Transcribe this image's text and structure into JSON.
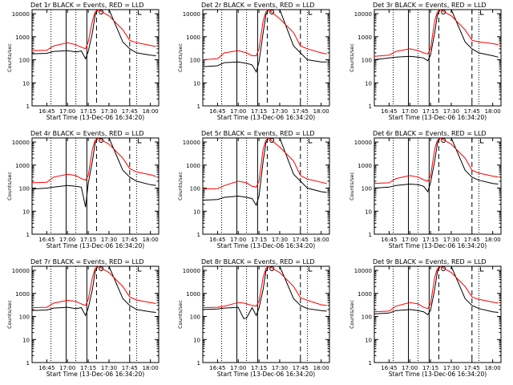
{
  "xlabel": "Start Time (13-Dec-06 16:34:20)",
  "ylabel": "Counts/sec",
  "colors": {
    "events": "#000000",
    "lld": "#ff0000",
    "axes": "#000000"
  },
  "chart_data": [
    {
      "type": "line",
      "title": "Det 1r BLACK = Events, RED = LLD",
      "xlabel": "Start Time (13-Dec-06 16:34:20)",
      "ylabel": "Counts/sec",
      "x_ticks": [
        "16:45",
        "17:00",
        "17:15",
        "17:30",
        "17:45",
        "18:00"
      ],
      "y_ticks": [
        "1",
        "10",
        "100",
        "1000",
        "10000"
      ],
      "yscale": "log",
      "series": [
        {
          "x": [
            "16:34",
            "16:45",
            "16:50",
            "17:00",
            "17:06",
            "17:10",
            "17:13",
            "17:15",
            "17:18",
            "17:20",
            "17:22",
            "17:30",
            "17:40",
            "17:45",
            "17:50",
            "18:00",
            "18:04"
          ],
          "values": [
            180,
            190,
            230,
            250,
            220,
            240,
            110,
            230,
            1500,
            9000,
            15000,
            15000,
            600,
            300,
            200,
            160,
            150
          ]
        },
        {
          "x": [
            "16:34",
            "16:45",
            "16:50",
            "17:00",
            "17:06",
            "17:10",
            "17:13",
            "17:15",
            "17:18",
            "17:20",
            "17:22",
            "17:30",
            "17:40",
            "17:45",
            "17:50",
            "18:00",
            "18:04"
          ],
          "values": [
            250,
            260,
            400,
            550,
            450,
            350,
            300,
            600,
            5000,
            12000,
            15000,
            8000,
            2000,
            700,
            550,
            420,
            380
          ]
        }
      ]
    },
    {
      "type": "line",
      "title": "Det 2r BLACK = Events, RED = LLD",
      "xlabel": "Start Time (13-Dec-06 16:34:20)",
      "ylabel": "Counts/sec",
      "x_ticks": [
        "16:45",
        "17:00",
        "17:15",
        "17:30",
        "17:45",
        "18:00"
      ],
      "y_ticks": [
        "1",
        "10",
        "100",
        "1000",
        "10000"
      ],
      "yscale": "log",
      "series": [
        {
          "x": [
            "16:34",
            "16:45",
            "16:50",
            "17:00",
            "17:06",
            "17:10",
            "17:13",
            "17:15",
            "17:18",
            "17:20",
            "17:22",
            "17:30",
            "17:40",
            "17:45",
            "17:50",
            "18:00",
            "18:04"
          ],
          "values": [
            50,
            55,
            75,
            80,
            70,
            60,
            30,
            80,
            1500,
            9000,
            15000,
            15000,
            400,
            200,
            100,
            80,
            80
          ]
        },
        {
          "x": [
            "16:34",
            "16:45",
            "16:50",
            "17:00",
            "17:06",
            "17:10",
            "17:13",
            "17:15",
            "17:18",
            "17:20",
            "17:22",
            "17:30",
            "17:40",
            "17:45",
            "17:50",
            "18:00",
            "18:04"
          ],
          "values": [
            100,
            110,
            200,
            250,
            200,
            150,
            150,
            300,
            5000,
            12000,
            15000,
            6000,
            1500,
            400,
            300,
            200,
            180
          ]
        }
      ]
    },
    {
      "type": "line",
      "title": "Det 3r BLACK = Events, RED = LLD",
      "xlabel": "Start Time (13-Dec-06 16:34:20)",
      "ylabel": "Counts/sec",
      "x_ticks": [
        "16:45",
        "17:00",
        "17:15",
        "17:30",
        "17:45",
        "18:00"
      ],
      "y_ticks": [
        "1",
        "10",
        "100",
        "1000",
        "10000"
      ],
      "yscale": "log",
      "series": [
        {
          "x": [
            "16:34",
            "16:45",
            "16:50",
            "17:00",
            "17:06",
            "17:10",
            "17:13",
            "17:15",
            "17:18",
            "17:20",
            "17:22",
            "17:30",
            "17:40",
            "17:45",
            "17:50",
            "18:00",
            "18:04"
          ],
          "values": [
            100,
            120,
            130,
            140,
            130,
            120,
            90,
            160,
            1500,
            9000,
            15000,
            15000,
            600,
            300,
            200,
            150,
            130
          ]
        },
        {
          "x": [
            "16:34",
            "16:45",
            "16:50",
            "17:00",
            "17:06",
            "17:10",
            "17:13",
            "17:15",
            "17:18",
            "17:20",
            "17:22",
            "17:30",
            "17:40",
            "17:45",
            "17:50",
            "18:00",
            "18:04"
          ],
          "values": [
            140,
            160,
            230,
            300,
            250,
            200,
            180,
            300,
            5000,
            12000,
            15000,
            8000,
            2000,
            700,
            600,
            500,
            450
          ]
        }
      ]
    },
    {
      "type": "line",
      "title": "Det 4r BLACK = Events, RED = LLD",
      "xlabel": "Start Time (13-Dec-06 16:34:20)",
      "ylabel": "Counts/sec",
      "x_ticks": [
        "16:45",
        "17:00",
        "17:15",
        "17:30",
        "17:45",
        "18:00"
      ],
      "y_ticks": [
        "1",
        "10",
        "100",
        "1000",
        "10000"
      ],
      "yscale": "log",
      "series": [
        {
          "x": [
            "16:34",
            "16:45",
            "16:50",
            "17:00",
            "17:06",
            "17:10",
            "17:13",
            "17:15",
            "17:18",
            "17:20",
            "17:22",
            "17:30",
            "17:40",
            "17:45",
            "17:50",
            "18:00",
            "18:04"
          ],
          "values": [
            90,
            100,
            110,
            130,
            120,
            110,
            15,
            160,
            1500,
            9000,
            15000,
            15000,
            600,
            300,
            200,
            140,
            130
          ]
        },
        {
          "x": [
            "16:34",
            "16:45",
            "16:50",
            "17:00",
            "17:06",
            "17:10",
            "17:13",
            "17:15",
            "17:18",
            "17:20",
            "17:22",
            "17:30",
            "17:40",
            "17:45",
            "17:50",
            "18:00",
            "18:04"
          ],
          "values": [
            170,
            180,
            300,
            400,
            350,
            260,
            220,
            350,
            5000,
            12000,
            15000,
            8000,
            2000,
            700,
            500,
            380,
            320
          ]
        }
      ]
    },
    {
      "type": "line",
      "title": "Det 5r BLACK = Events, RED = LLD",
      "xlabel": "Start Time (13-Dec-06 16:34:20)",
      "ylabel": "Counts/sec",
      "x_ticks": [
        "16:45",
        "17:00",
        "17:15",
        "17:30",
        "17:45",
        "18:00"
      ],
      "y_ticks": [
        "1",
        "10",
        "100",
        "1000",
        "10000"
      ],
      "yscale": "log",
      "series": [
        {
          "x": [
            "16:34",
            "16:45",
            "16:50",
            "17:00",
            "17:06",
            "17:10",
            "17:13",
            "17:15",
            "17:18",
            "17:20",
            "17:22",
            "17:30",
            "17:40",
            "17:45",
            "17:50",
            "18:00",
            "18:04"
          ],
          "values": [
            30,
            32,
            40,
            45,
            40,
            35,
            18,
            45,
            1500,
            9000,
            15000,
            15000,
            400,
            200,
            100,
            70,
            65
          ]
        },
        {
          "x": [
            "16:34",
            "16:45",
            "16:50",
            "17:00",
            "17:06",
            "17:10",
            "17:13",
            "17:15",
            "17:18",
            "17:20",
            "17:22",
            "17:30",
            "17:40",
            "17:45",
            "17:50",
            "18:00",
            "18:04"
          ],
          "values": [
            90,
            95,
            130,
            200,
            170,
            120,
            110,
            200,
            5000,
            12000,
            15000,
            6000,
            1500,
            350,
            250,
            180,
            160
          ]
        }
      ]
    },
    {
      "type": "line",
      "title": "Det 6r BLACK = Events, RED = LLD",
      "xlabel": "Start Time (13-Dec-06 16:34:20)",
      "ylabel": "Counts/sec",
      "x_ticks": [
        "16:45",
        "17:00",
        "17:15",
        "17:30",
        "17:45",
        "18:00"
      ],
      "y_ticks": [
        "1",
        "10",
        "100",
        "1000",
        "10000"
      ],
      "yscale": "log",
      "series": [
        {
          "x": [
            "16:34",
            "16:45",
            "16:50",
            "17:00",
            "17:06",
            "17:10",
            "17:13",
            "17:15",
            "17:18",
            "17:20",
            "17:22",
            "17:30",
            "17:40",
            "17:45",
            "17:50",
            "18:00",
            "18:04"
          ],
          "values": [
            100,
            110,
            130,
            150,
            140,
            120,
            70,
            170,
            1500,
            9000,
            15000,
            15000,
            600,
            300,
            220,
            160,
            150
          ]
        },
        {
          "x": [
            "16:34",
            "16:45",
            "16:50",
            "17:00",
            "17:06",
            "17:10",
            "17:13",
            "17:15",
            "17:18",
            "17:20",
            "17:22",
            "17:30",
            "17:40",
            "17:45",
            "17:50",
            "18:00",
            "18:04"
          ],
          "values": [
            160,
            170,
            260,
            350,
            300,
            230,
            200,
            320,
            5000,
            12000,
            15000,
            8000,
            2000,
            600,
            450,
            330,
            300
          ]
        }
      ]
    },
    {
      "type": "line",
      "title": "Det 7r BLACK = Events, RED = LLD",
      "xlabel": "Start Time (13-Dec-06 16:34:20)",
      "ylabel": "Counts/sec",
      "x_ticks": [
        "16:45",
        "17:00",
        "17:15",
        "17:30",
        "17:45",
        "18:00"
      ],
      "y_ticks": [
        "1",
        "10",
        "100",
        "1000",
        "10000"
      ],
      "yscale": "log",
      "series": [
        {
          "x": [
            "16:34",
            "16:45",
            "16:50",
            "17:00",
            "17:06",
            "17:10",
            "17:13",
            "17:15",
            "17:18",
            "17:20",
            "17:22",
            "17:30",
            "17:40",
            "17:45",
            "17:50",
            "18:00",
            "18:04"
          ],
          "values": [
            180,
            190,
            230,
            250,
            220,
            240,
            110,
            230,
            1500,
            9000,
            15000,
            15000,
            600,
            300,
            200,
            160,
            150
          ]
        },
        {
          "x": [
            "16:34",
            "16:45",
            "16:50",
            "17:00",
            "17:06",
            "17:10",
            "17:13",
            "17:15",
            "17:18",
            "17:20",
            "17:22",
            "17:30",
            "17:40",
            "17:45",
            "17:50",
            "18:00",
            "18:04"
          ],
          "values": [
            240,
            250,
            380,
            500,
            450,
            350,
            300,
            550,
            5000,
            12000,
            15000,
            8000,
            2000,
            700,
            520,
            400,
            360
          ]
        }
      ]
    },
    {
      "type": "line",
      "title": "Det 8r BLACK = Events, RED = LLD",
      "xlabel": "Start Time (13-Dec-06 16:34:20)",
      "ylabel": "Counts/sec",
      "x_ticks": [
        "16:45",
        "17:00",
        "17:15",
        "17:30",
        "17:45",
        "18:00"
      ],
      "y_ticks": [
        "1",
        "10",
        "100",
        "1000",
        "10000"
      ],
      "yscale": "log",
      "series": [
        {
          "x": [
            "16:34",
            "16:45",
            "16:50",
            "17:00",
            "17:04",
            "17:06",
            "17:10",
            "17:13",
            "17:15",
            "17:18",
            "17:20",
            "17:22",
            "17:30",
            "17:40",
            "17:45",
            "17:50",
            "18:00",
            "18:04"
          ],
          "values": [
            200,
            210,
            230,
            250,
            80,
            85,
            240,
            110,
            230,
            1500,
            9000,
            15000,
            15000,
            600,
            300,
            220,
            180,
            170
          ]
        },
        {
          "x": [
            "16:34",
            "16:45",
            "16:50",
            "17:00",
            "17:04",
            "17:06",
            "17:10",
            "17:13",
            "17:15",
            "17:18",
            "17:20",
            "17:22",
            "17:30",
            "17:40",
            "17:45",
            "17:50",
            "18:00",
            "18:04"
          ],
          "values": [
            240,
            250,
            280,
            400,
            380,
            350,
            300,
            280,
            450,
            5000,
            12000,
            15000,
            8000,
            2000,
            650,
            500,
            320,
            300
          ]
        }
      ]
    },
    {
      "type": "line",
      "title": "Det 9r BLACK = Events, RED = LLD",
      "xlabel": "Start Time (13-Dec-06 16:34:20)",
      "ylabel": "Counts/sec",
      "x_ticks": [
        "16:45",
        "17:00",
        "17:15",
        "17:30",
        "17:45",
        "18:00"
      ],
      "y_ticks": [
        "1",
        "10",
        "100",
        "1000",
        "10000"
      ],
      "yscale": "log",
      "series": [
        {
          "x": [
            "16:34",
            "16:45",
            "16:50",
            "17:00",
            "17:06",
            "17:10",
            "17:13",
            "17:15",
            "17:18",
            "17:20",
            "17:22",
            "17:30",
            "17:40",
            "17:45",
            "17:50",
            "18:00",
            "18:04"
          ],
          "values": [
            130,
            140,
            180,
            200,
            180,
            160,
            120,
            180,
            1500,
            9000,
            15000,
            15000,
            600,
            300,
            220,
            160,
            150
          ]
        },
        {
          "x": [
            "16:34",
            "16:45",
            "16:50",
            "17:00",
            "17:06",
            "17:10",
            "17:13",
            "17:15",
            "17:18",
            "17:20",
            "17:22",
            "17:30",
            "17:40",
            "17:45",
            "17:50",
            "18:00",
            "18:04"
          ],
          "values": [
            160,
            170,
            280,
            400,
            350,
            250,
            220,
            350,
            5000,
            12000,
            15000,
            8000,
            2000,
            700,
            550,
            420,
            380
          ]
        }
      ]
    }
  ]
}
